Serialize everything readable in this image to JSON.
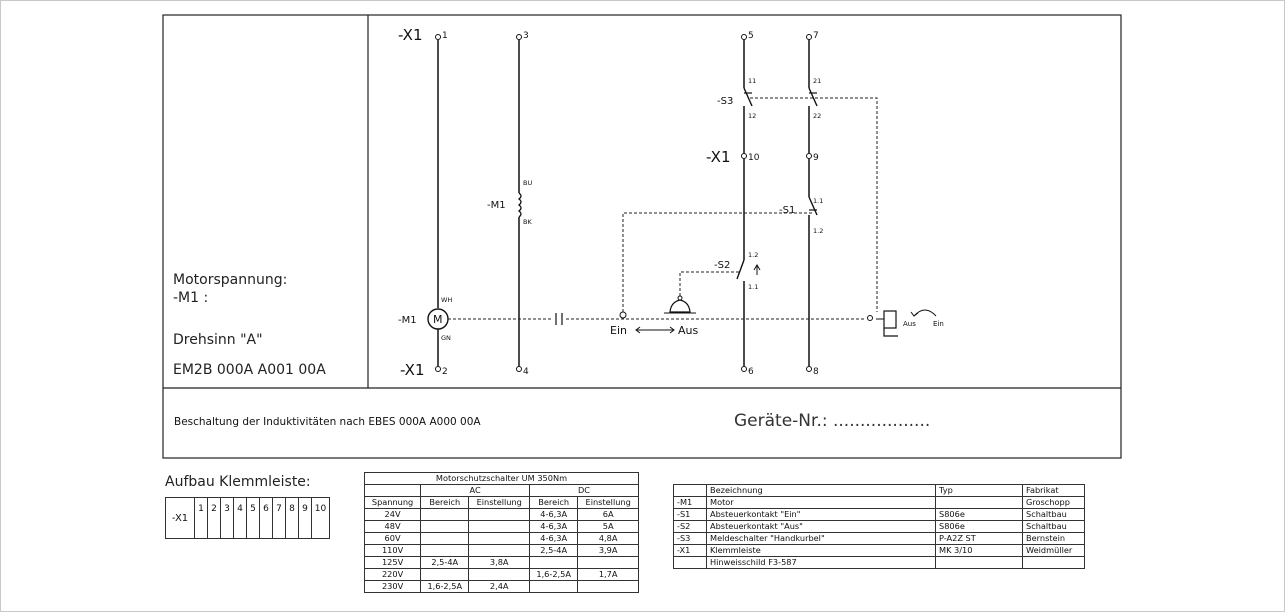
{
  "terminals": {
    "t1": "1",
    "t2": "2",
    "t3": "3",
    "t4": "4",
    "t5": "5",
    "t6": "6",
    "t7": "7",
    "t8": "8",
    "t9": "9",
    "t10": "10"
  },
  "labels": {
    "x1_top": "-X1",
    "x1_mid": "-X1",
    "x1_bottom": "-X1",
    "m1_coil": "-M1",
    "bu": "BU",
    "bk": "BK",
    "m1_motor": "-M1",
    "motor_symbol": "M",
    "wh": "WH",
    "gn": "GN",
    "s3": "-S3",
    "s3_11": "11",
    "s3_12": "12",
    "s3_21": "21",
    "s3_22": "22",
    "s1": "-S1",
    "s1_11": "1.1",
    "s1_12": "1.2",
    "s2": "-S2",
    "s2_12": "1.2",
    "s2_11": "1.1",
    "ein": "Ein",
    "aus": "Aus",
    "handle_aus": "Aus",
    "handle_ein": "Ein"
  },
  "side_panel": {
    "motorspannung": "Motorspannung:",
    "m1": "-M1 :",
    "drehsinn": "Drehsinn \"A\"",
    "code": "EM2B 000A A001 00A"
  },
  "footer": {
    "note": "Beschaltung der Induktivitäten nach EBES 000A A000 00A",
    "geraete": "Geräte-Nr.: .................."
  },
  "klemmleiste": {
    "title": "Aufbau Klemmleiste:",
    "label": "-X1",
    "cells": [
      "1",
      "2",
      "3",
      "4",
      "5",
      "6",
      "7",
      "8",
      "9",
      "10"
    ]
  },
  "motorschutz": {
    "title": "Motorschutzschalter UM 350Nm",
    "ac": "AC",
    "dc": "DC",
    "headers": [
      "Spannung",
      "Bereich",
      "Einstellung",
      "Bereich",
      "Einstellung"
    ],
    "rows": [
      [
        "24V",
        "",
        "",
        "4-6,3A",
        "6A"
      ],
      [
        "48V",
        "",
        "",
        "4-6,3A",
        "5A"
      ],
      [
        "60V",
        "",
        "",
        "4-6,3A",
        "4,8A"
      ],
      [
        "110V",
        "",
        "",
        "2,5-4A",
        "3,9A"
      ],
      [
        "125V",
        "2,5-4A",
        "3,8A",
        "",
        ""
      ],
      [
        "220V",
        "",
        "",
        "1,6-2,5A",
        "1,7A"
      ],
      [
        "230V",
        "1,6-2,5A",
        "2,4A",
        "",
        ""
      ]
    ]
  },
  "equipment": {
    "headers": [
      "",
      "Bezeichnung",
      "Typ",
      "Fabrikat"
    ],
    "rows": [
      [
        "-M1",
        "Motor",
        "",
        "Groschopp"
      ],
      [
        "-S1",
        "Absteuerkontakt \"Ein\"",
        "S806e",
        "Schaltbau"
      ],
      [
        "-S2",
        "Absteuerkontakt \"Aus\"",
        "S806e",
        "Schaltbau"
      ],
      [
        "-S3",
        "Meldeschalter \"Handkurbel\"",
        "P-A2Z ST",
        "Bernstein"
      ],
      [
        "-X1",
        "Klemmleiste",
        "MK 3/10",
        "Weidmüller"
      ],
      [
        "",
        "Hinweisschild F3-587",
        "",
        ""
      ]
    ]
  }
}
